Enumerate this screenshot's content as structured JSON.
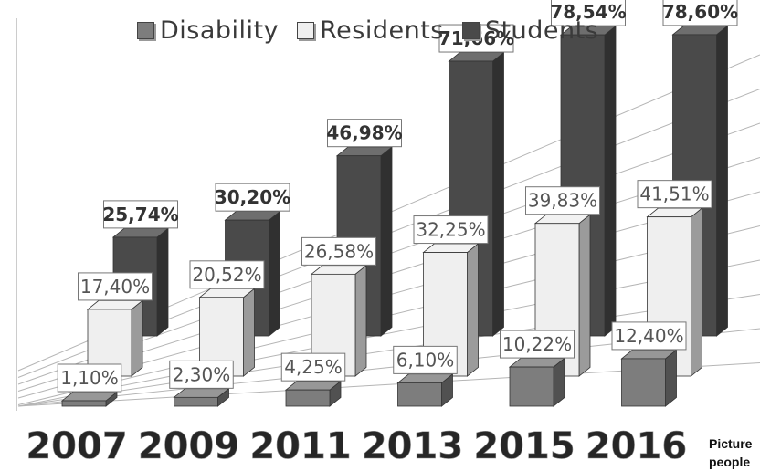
{
  "chart_data": {
    "type": "bar",
    "categories": [
      "2007",
      "2009",
      "2011",
      "2013",
      "2015",
      "2016"
    ],
    "series": [
      {
        "name": "Disability",
        "values": [
          1.1,
          2.3,
          4.25,
          6.1,
          10.22,
          12.4
        ],
        "labels": [
          "1,10%",
          "2,30%",
          "4,25%",
          "6,10%",
          "10,22%",
          "12,40%"
        ]
      },
      {
        "name": "Residents",
        "values": [
          17.4,
          20.52,
          26.58,
          32.25,
          39.83,
          41.51
        ],
        "labels": [
          "17,40%",
          "20,52%",
          "26,58%",
          "32,25%",
          "39,83%",
          "41,51%"
        ]
      },
      {
        "name": "Students",
        "values": [
          25.74,
          30.2,
          46.98,
          71.66,
          78.54,
          78.6
        ],
        "labels": [
          "25,74%",
          "30,20%",
          "46,98%",
          "71,66%",
          "78,54%",
          "78,60%"
        ]
      }
    ],
    "grid": true,
    "legend_position": "top",
    "colors": {
      "Disability": "#7d7d7d",
      "Residents": "#efefef",
      "Students": "#4a4a4a"
    }
  },
  "caption": "Picture\npeople"
}
